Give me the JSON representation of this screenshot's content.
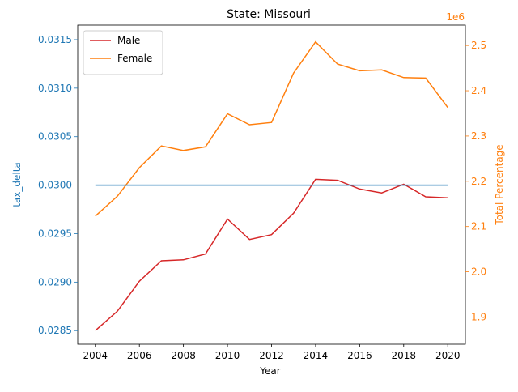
{
  "chart_data": {
    "type": "line",
    "title": "State: Missouri",
    "xlabel": "Year",
    "x_ticks": [
      2004,
      2006,
      2008,
      2010,
      2012,
      2014,
      2016,
      2018,
      2020
    ],
    "xlim": [
      2003.2,
      2020.8
    ],
    "left_axis": {
      "label": "tax_delta",
      "color": "#1f77b4",
      "ylim": [
        0.02836,
        0.03165
      ],
      "ticks": [
        "0.0285",
        "0.0290",
        "0.0295",
        "0.0300",
        "0.0305",
        "0.0310",
        "0.0315"
      ],
      "tick_values": [
        0.0285,
        0.029,
        0.0295,
        0.03,
        0.0305,
        0.031,
        0.0315
      ]
    },
    "right_axis": {
      "label": "Total Percentage",
      "color": "#ff7f0e",
      "offset_text": "1e6",
      "ylim": [
        1.84,
        2.545
      ],
      "ticks": [
        "1.9",
        "2.0",
        "2.1",
        "2.2",
        "2.3",
        "2.4",
        "2.5"
      ],
      "tick_values": [
        1.9,
        2.0,
        2.1,
        2.2,
        2.3,
        2.4,
        2.5
      ]
    },
    "x": [
      2004,
      2005,
      2006,
      2007,
      2008,
      2009,
      2010,
      2011,
      2012,
      2013,
      2014,
      2015,
      2016,
      2017,
      2018,
      2019,
      2020
    ],
    "series": [
      {
        "name": "Male",
        "axis": "left",
        "color": "#d62728",
        "values": [
          0.0285,
          0.0287,
          0.02901,
          0.02922,
          0.02923,
          0.02929,
          0.02965,
          0.02944,
          0.02949,
          0.02971,
          0.03006,
          0.03005,
          0.02996,
          0.02992,
          0.03001,
          0.02988,
          0.02987
        ]
      },
      {
        "name": "Female",
        "axis": "right",
        "color": "#ff7f0e",
        "values": [
          2.123,
          2.167,
          2.23,
          2.278,
          2.268,
          2.276,
          2.349,
          2.325,
          2.33,
          2.439,
          2.508,
          2.459,
          2.444,
          2.446,
          2.429,
          2.428,
          2.363
        ]
      },
      {
        "axis": "left",
        "color": "#1f77b4",
        "values": [
          0.03,
          0.03,
          0.03,
          0.03,
          0.03,
          0.03,
          0.03,
          0.03,
          0.03,
          0.03,
          0.03,
          0.03,
          0.03,
          0.03,
          0.03,
          0.03,
          0.03
        ]
      }
    ],
    "legend_position": "top-left",
    "grid": false
  }
}
